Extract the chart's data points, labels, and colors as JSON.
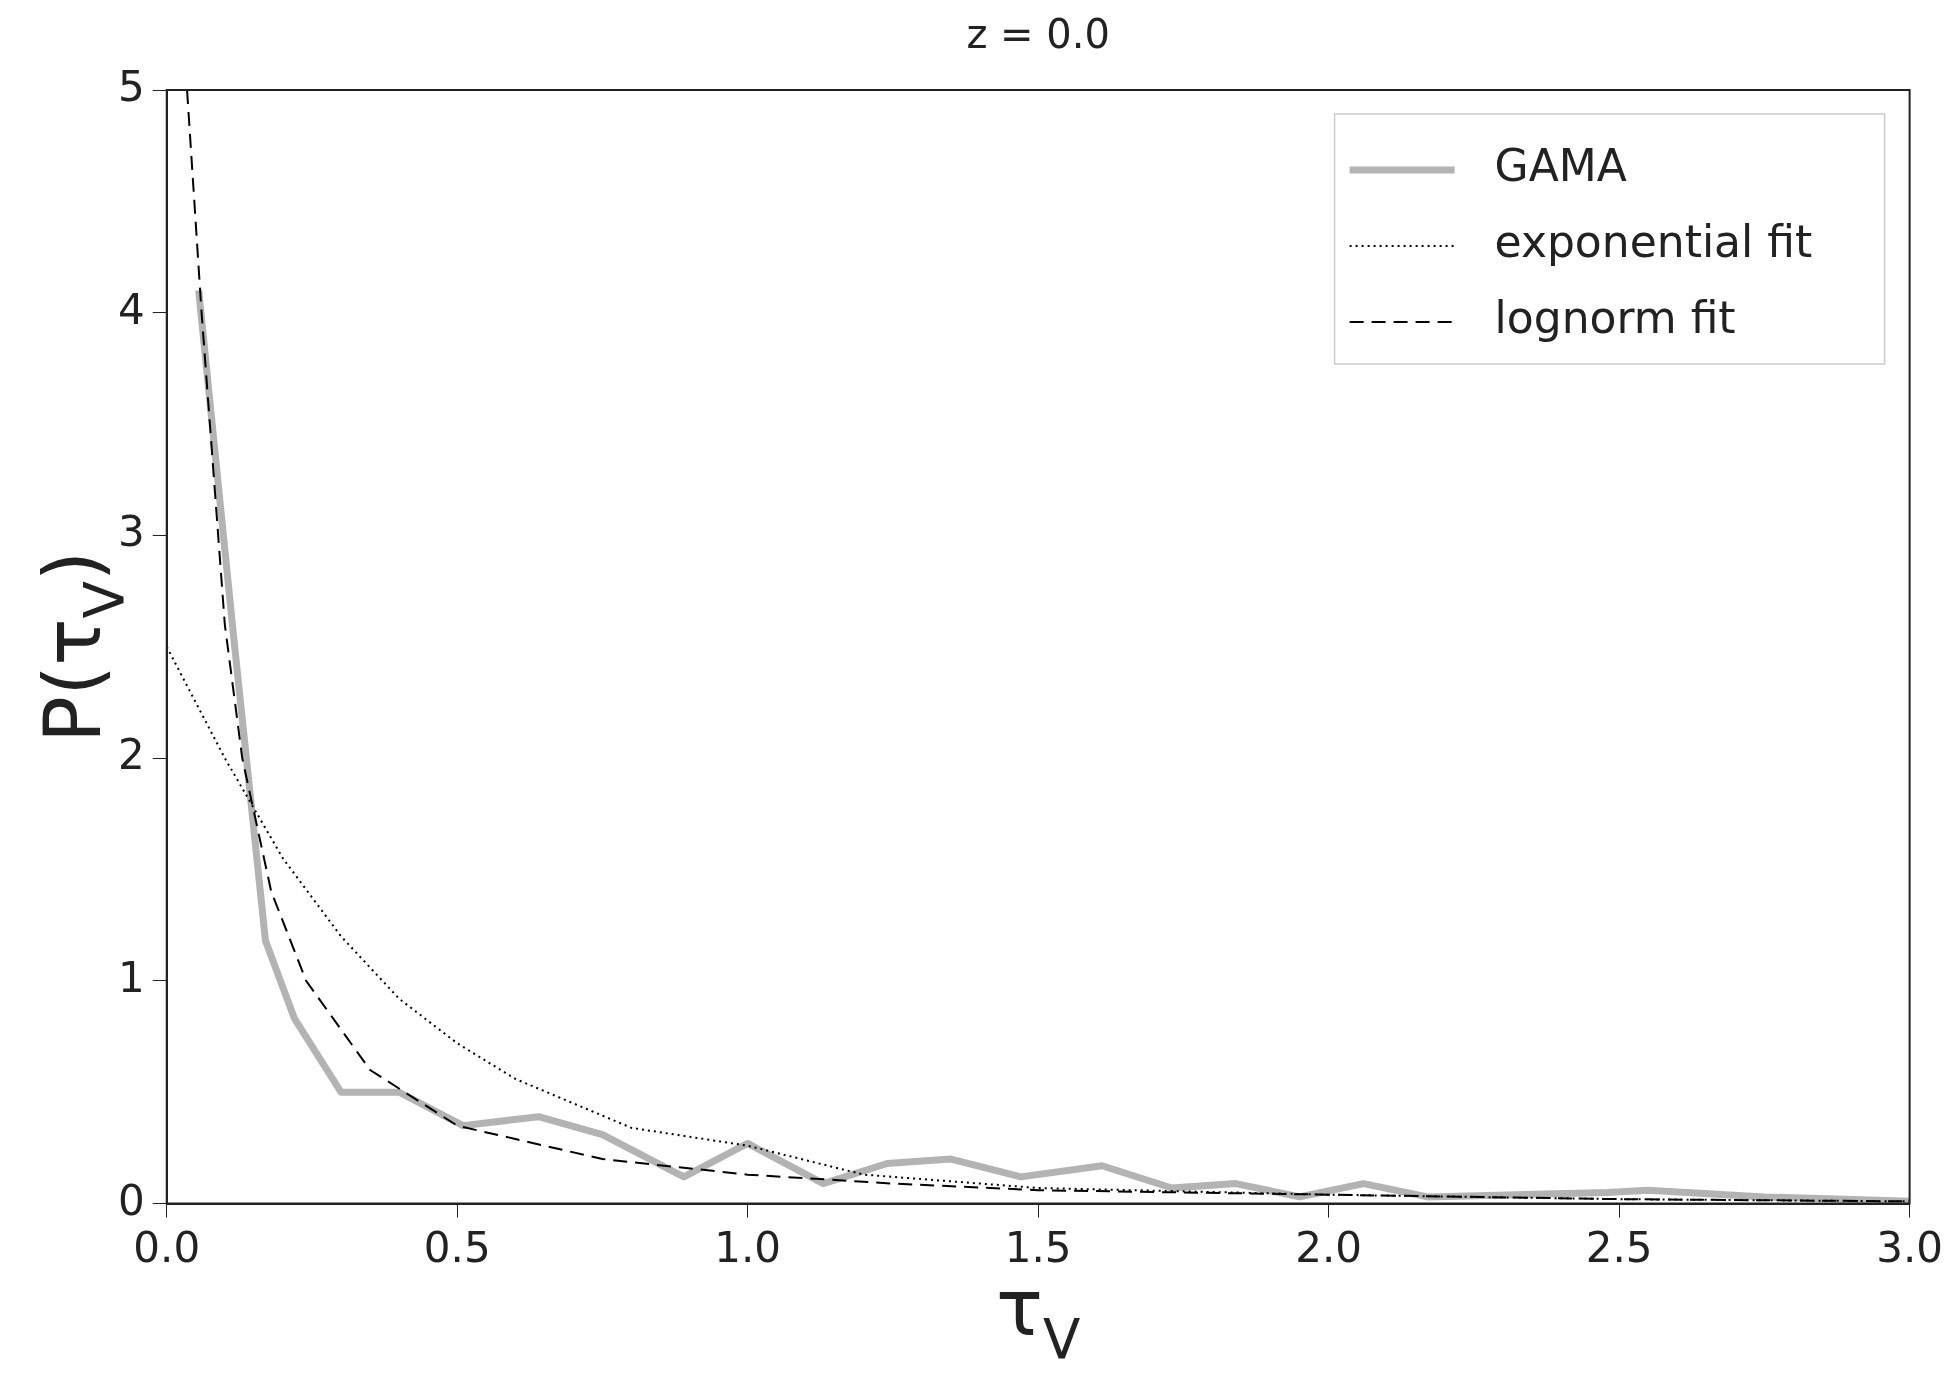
{
  "chart_data": {
    "type": "line",
    "title": "z = 0.0",
    "xlabel": "τ$_{V}$",
    "ylabel": "P(τ$_{V}$)",
    "xlim": [
      0,
      3
    ],
    "xticks": [
      {
        "value": 0,
        "label": "0.0"
      },
      {
        "value": 0.5,
        "label": "0.5"
      },
      {
        "value": 1,
        "label": "1.0"
      },
      {
        "value": 1.5,
        "label": "1.5"
      },
      {
        "value": 2,
        "label": "2.0"
      },
      {
        "value": 2.5,
        "label": "2.5"
      },
      {
        "value": 3,
        "label": "3.0"
      }
    ],
    "ylim": [
      0,
      5
    ],
    "yticks": [
      0,
      1,
      2,
      3,
      4,
      5
    ],
    "grid": false,
    "legend": "top right",
    "marker": "none",
    "series": [
      {
        "name": "GAMA",
        "color": "#b3b3b3",
        "line_style": "solid",
        "x": [
          0.055,
          0.115,
          0.17,
          0.22,
          0.3,
          0.4,
          0.51,
          0.64,
          0.75,
          0.89,
          1.0,
          1.13,
          1.24,
          1.35,
          1.47,
          1.61,
          1.73,
          1.84,
          1.95,
          2.06,
          2.17,
          2.48,
          2.55,
          2.75,
          3.0
        ],
        "values": [
          4.1,
          2.55,
          1.18,
          0.83,
          0.5,
          0.5,
          0.35,
          0.39,
          0.31,
          0.12,
          0.27,
          0.09,
          0.18,
          0.2,
          0.12,
          0.17,
          0.07,
          0.09,
          0.03,
          0.09,
          0.03,
          0.05,
          0.06,
          0.03,
          0.01
        ]
      },
      {
        "name": "exponential fit",
        "color": "#000000",
        "line_style": "dotted",
        "x": [
          0,
          0.1,
          0.2,
          0.3,
          0.4,
          0.5,
          0.6,
          0.8,
          1.0,
          1.2,
          1.5,
          2.0,
          2.5,
          3.0
        ],
        "values": [
          2.5,
          2.0,
          1.55,
          1.2,
          0.92,
          0.72,
          0.56,
          0.34,
          0.26,
          0.13,
          0.07,
          0.04,
          0.02,
          0.01
        ]
      },
      {
        "name": "lognorm fit",
        "color": "#000000",
        "line_style": "dashed",
        "x": [
          0.035,
          0.06,
          0.1,
          0.13,
          0.18,
          0.24,
          0.35,
          0.5,
          0.75,
          1.0,
          1.25,
          1.5,
          2.0,
          2.5,
          3.0
        ],
        "values": [
          5.0,
          4.0,
          2.6,
          2.0,
          1.4,
          1.0,
          0.6,
          0.35,
          0.2,
          0.13,
          0.09,
          0.06,
          0.04,
          0.02,
          0.01
        ]
      }
    ]
  }
}
